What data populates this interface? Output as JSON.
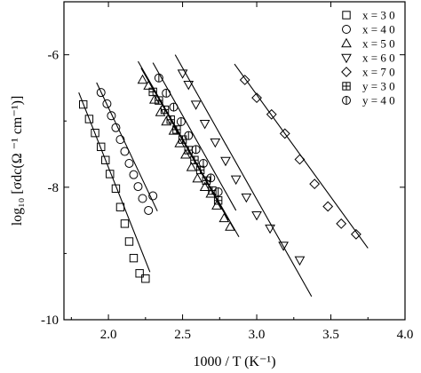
{
  "chart_data": {
    "type": "scatter",
    "xlabel": "1000 / T (K⁻¹)",
    "ylabel": "log₁₀ [σdc(Ω ⁻¹ cm⁻¹)]",
    "xlim": [
      1.7,
      4.0
    ],
    "ylim": [
      -10,
      -5.2
    ],
    "x_ticks": [
      2.0,
      2.5,
      3.0,
      3.5,
      4.0
    ],
    "y_ticks": [
      -10,
      -8,
      -6
    ],
    "x_tick_labels": [
      "2.0",
      "2.5",
      "3.0",
      "3.5",
      "4.0"
    ],
    "y_tick_labels": [
      "-10",
      "-8",
      "-6"
    ],
    "legend_position": "top-right",
    "fit_lines": true,
    "series": [
      {
        "name": "x = 3 0",
        "marker": "square",
        "x": [
          1.83,
          1.87,
          1.91,
          1.95,
          1.98,
          2.01,
          2.05,
          2.08,
          2.11,
          2.14,
          2.17,
          2.21,
          2.25
        ],
        "y": [
          -6.75,
          -6.97,
          -7.18,
          -7.39,
          -7.59,
          -7.8,
          -8.02,
          -8.3,
          -8.55,
          -8.82,
          -9.07,
          -9.3,
          -9.38
        ],
        "fit": [
          [
            1.8,
            -6.57
          ],
          [
            2.28,
            -9.28
          ]
        ]
      },
      {
        "name": "x = 4 0",
        "marker": "circle",
        "x": [
          1.95,
          1.99,
          2.02,
          2.05,
          2.08,
          2.11,
          2.14,
          2.17,
          2.2,
          2.23,
          2.27,
          2.3
        ],
        "y": [
          -6.57,
          -6.74,
          -6.92,
          -7.1,
          -7.28,
          -7.46,
          -7.64,
          -7.81,
          -7.99,
          -8.17,
          -8.35,
          -8.13
        ],
        "fit": [
          [
            1.92,
            -6.42
          ],
          [
            2.33,
            -8.36
          ]
        ]
      },
      {
        "name": "x = 5 0",
        "marker": "triangle-up",
        "x": [
          2.23,
          2.27,
          2.31,
          2.35,
          2.39,
          2.44,
          2.48,
          2.52,
          2.56,
          2.6,
          2.65,
          2.69,
          2.73,
          2.78,
          2.82
        ],
        "y": [
          -6.38,
          -6.47,
          -6.68,
          -6.87,
          -7.01,
          -7.15,
          -7.34,
          -7.51,
          -7.7,
          -7.87,
          -8.0,
          -8.1,
          -8.28,
          -8.47,
          -8.6
        ],
        "fit": [
          [
            2.2,
            -6.1
          ],
          [
            2.88,
            -8.75
          ]
        ]
      },
      {
        "name": "x = 6 0",
        "marker": "triangle-down",
        "x": [
          2.5,
          2.54,
          2.59,
          2.65,
          2.72,
          2.79,
          2.86,
          2.93,
          3.0,
          3.09,
          3.18,
          3.29
        ],
        "y": [
          -6.28,
          -6.45,
          -6.75,
          -7.04,
          -7.32,
          -7.6,
          -7.88,
          -8.15,
          -8.42,
          -8.62,
          -8.88,
          -9.1
        ],
        "fit": [
          [
            2.45,
            -6.0
          ],
          [
            3.37,
            -9.65
          ]
        ]
      },
      {
        "name": "x = 7 0",
        "marker": "diamond",
        "x": [
          2.92,
          3.0,
          3.1,
          3.19,
          3.29,
          3.39,
          3.48,
          3.57,
          3.67
        ],
        "y": [
          -6.38,
          -6.65,
          -6.9,
          -7.19,
          -7.58,
          -7.95,
          -8.29,
          -8.55,
          -8.71
        ],
        "fit": [
          [
            2.85,
            -6.14
          ],
          [
            3.75,
            -8.92
          ]
        ]
      },
      {
        "name": "y = 3 0",
        "marker": "square-cross",
        "x": [
          2.3,
          2.34,
          2.38,
          2.42,
          2.46,
          2.5,
          2.54,
          2.58,
          2.62,
          2.66,
          2.7,
          2.74
        ],
        "y": [
          -6.56,
          -6.69,
          -6.83,
          -6.98,
          -7.13,
          -7.28,
          -7.44,
          -7.59,
          -7.74,
          -7.9,
          -8.05,
          -8.2
        ],
        "fit": [
          [
            2.22,
            -6.2
          ],
          [
            2.81,
            -8.5
          ]
        ]
      },
      {
        "name": "y = 4 0",
        "marker": "circle-bar",
        "x": [
          2.34,
          2.39,
          2.44,
          2.49,
          2.54,
          2.59,
          2.64,
          2.69,
          2.74
        ],
        "y": [
          -6.35,
          -6.58,
          -6.79,
          -7.01,
          -7.22,
          -7.43,
          -7.64,
          -7.86,
          -8.07
        ],
        "fit": [
          [
            2.3,
            -6.12
          ],
          [
            2.86,
            -8.35
          ]
        ]
      }
    ]
  }
}
